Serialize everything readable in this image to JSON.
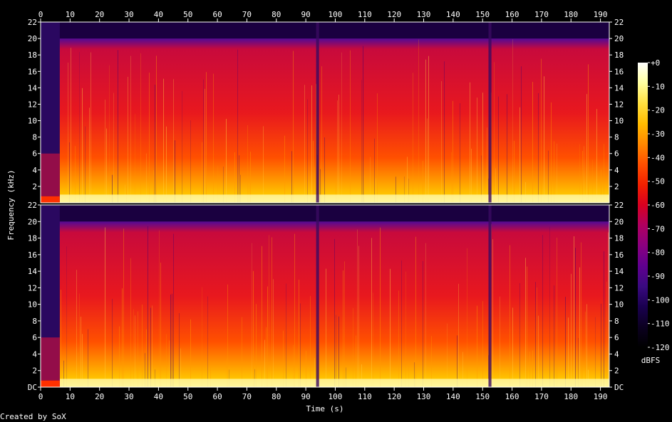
{
  "chart_data": {
    "type": "heatmap",
    "xlabel": "Time (s)",
    "ylabel": "Frequency (kHz)",
    "x_ticks": [
      0,
      10,
      20,
      30,
      40,
      50,
      60,
      70,
      80,
      90,
      100,
      110,
      120,
      130,
      140,
      150,
      160,
      170,
      180,
      190
    ],
    "xlim": [
      0,
      193
    ],
    "y_ticks": [
      {
        "value": 0,
        "label": "DC"
      },
      {
        "value": 2,
        "label": "2"
      },
      {
        "value": 4,
        "label": "4"
      },
      {
        "value": 6,
        "label": "6"
      },
      {
        "value": 8,
        "label": "8"
      },
      {
        "value": 10,
        "label": "10"
      },
      {
        "value": 12,
        "label": "12"
      },
      {
        "value": 14,
        "label": "14"
      },
      {
        "value": 16,
        "label": "16"
      },
      {
        "value": 18,
        "label": "18"
      },
      {
        "value": 20,
        "label": "20"
      },
      {
        "value": 22,
        "label": "22"
      }
    ],
    "ylim": [
      0,
      22
    ],
    "channels": 2,
    "lowpass_cutoff_khz": 20,
    "colorbar": {
      "unit": "dBFS",
      "ticks": [
        "+0",
        "-10",
        "-20",
        "-30",
        "-40",
        "-50",
        "-60",
        "-70",
        "-80",
        "-90",
        "-100",
        "-110",
        "-120"
      ],
      "range": [
        -120,
        0
      ],
      "palette": [
        "#000000",
        "#0b0020",
        "#1a0050",
        "#3a0a80",
        "#600090",
        "#8a0080",
        "#b00060",
        "#d80020",
        "#f22000",
        "#ff5000",
        "#ff8800",
        "#ffbb00",
        "#ffe040",
        "#ffffa0",
        "#ffffff"
      ]
    },
    "quiet_segments_s": [
      [
        0,
        6.5
      ],
      [
        93.5,
        94.5
      ],
      [
        152,
        153
      ]
    ]
  },
  "footer": {
    "credit": "Created by SoX"
  }
}
